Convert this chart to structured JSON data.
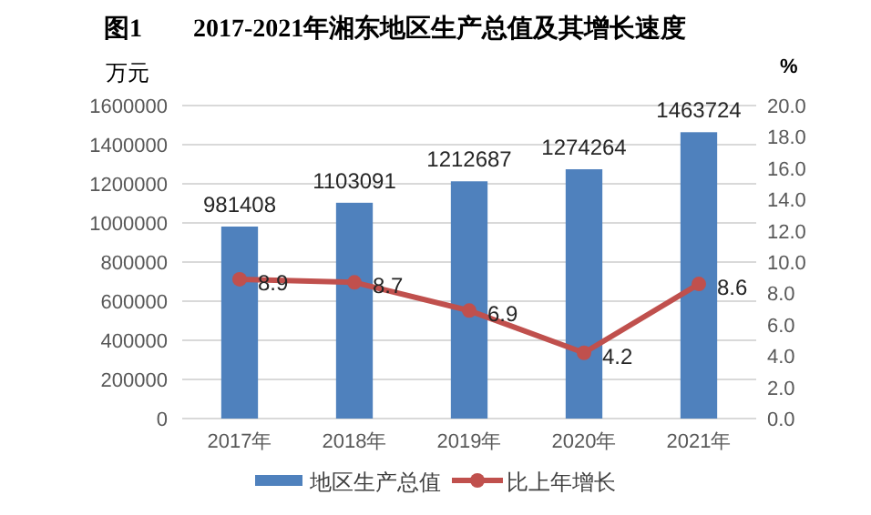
{
  "chart_data": {
    "type": "bar",
    "title": "图1　　2017-2021年湘东地区生产总值及其增长速度",
    "ylabel": "万元",
    "y2label": "%",
    "categories": [
      "2017年",
      "2018年",
      "2019年",
      "2020年",
      "2021年"
    ],
    "series": [
      {
        "name": "地区生产总值",
        "color": "#4f81bd",
        "values": [
          981408,
          1103091,
          1212687,
          1274264,
          1463724
        ]
      },
      {
        "name": "比上年增长",
        "type": "line",
        "axis": "y2",
        "color": "#c0504d",
        "marker": "circle",
        "values": [
          8.9,
          8.7,
          6.9,
          4.2,
          8.6
        ]
      }
    ],
    "ylim": [
      0,
      1600000
    ],
    "yticks": [
      0,
      200000,
      400000,
      600000,
      800000,
      1000000,
      1200000,
      1400000,
      1600000
    ],
    "y2lim": [
      0,
      20
    ],
    "y2ticks": [
      {
        "value": 0,
        "label": "0.0"
      },
      {
        "value": 2,
        "label": "2.0"
      },
      {
        "value": 4,
        "label": "4.0"
      },
      {
        "value": 6,
        "label": "6.0"
      },
      {
        "value": 8,
        "label": "8.0"
      },
      {
        "value": 10,
        "label": "10.0"
      },
      {
        "value": 12,
        "label": "12.0"
      },
      {
        "value": 14,
        "label": "14.0"
      },
      {
        "value": 16,
        "label": "16.0"
      },
      {
        "value": 18,
        "label": "18.0"
      },
      {
        "value": 20,
        "label": "20.0"
      }
    ],
    "grid": "y",
    "data_labels": true,
    "legend": "bottom"
  }
}
